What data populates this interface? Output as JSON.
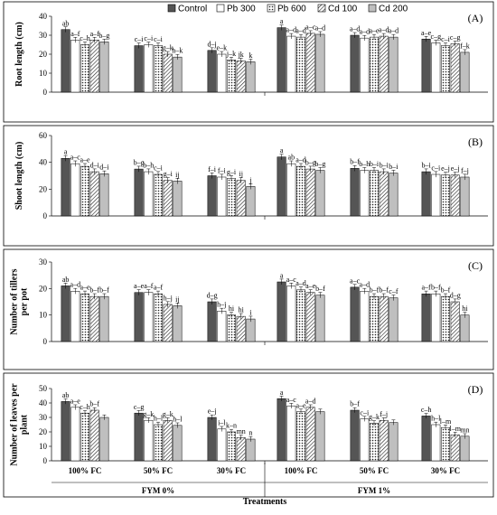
{
  "chart_data": {
    "type": "bar",
    "legend": [
      "Control",
      "Pb 300",
      "Pb 600",
      "Cd 100",
      "Cd 200"
    ],
    "legend_position": "top",
    "series_colors": [
      "#555555",
      "#ffffff",
      "pattern-dots",
      "pattern-hatch",
      "#bfbfbf"
    ],
    "groups": [
      "FYM 0%",
      "FYM 1%"
    ],
    "categories": [
      "100% FC",
      "50% FC",
      "30% FC",
      "100% FC",
      "50% FC",
      "30% FC"
    ],
    "xlabel": "Treatments",
    "panels": [
      {
        "tag": "(A)",
        "ylabel": "Root length (cm)",
        "ylim": [
          0,
          40
        ],
        "yticks": [
          0,
          10,
          20,
          30,
          40
        ],
        "values": [
          [
            33,
            27.5,
            25,
            27.5,
            26.5
          ],
          [
            24.5,
            25,
            24.5,
            20,
            18.5
          ],
          [
            22,
            20,
            17,
            16.5,
            16
          ],
          [
            34,
            29.5,
            29,
            31,
            30.5
          ],
          [
            30,
            28.5,
            29,
            29.5,
            29
          ],
          [
            28,
            26,
            24.5,
            25.5,
            21
          ]
        ],
        "labels": [
          [
            "ab",
            "a–f",
            "c–h",
            "a–f",
            "b–g"
          ],
          [
            "c–i",
            "c–i",
            "c–i",
            "g–k",
            "h–k"
          ],
          [
            "d–j",
            "e–k",
            "j–k",
            "jk",
            "k"
          ],
          [
            "a",
            "a–d",
            "a–d",
            "a–c",
            "a–d"
          ],
          [
            "a–d",
            "a–d",
            "a–e",
            "a–d",
            "a–d"
          ],
          [
            "a–e",
            "c–g",
            "c–i",
            "c–g",
            "f–k"
          ]
        ]
      },
      {
        "tag": "(B)",
        "ylabel": "Shoot length (cm)",
        "ylim": [
          0,
          60
        ],
        "yticks": [
          0,
          20,
          40,
          60
        ],
        "values": [
          [
            43,
            39,
            37,
            33,
            31.5
          ],
          [
            35,
            33,
            31,
            26.5,
            26
          ],
          [
            30,
            29,
            28,
            26.5,
            22
          ],
          [
            44,
            39,
            37,
            35,
            34
          ],
          [
            35.5,
            34,
            34,
            33,
            32
          ],
          [
            33,
            31,
            30.5,
            30.5,
            29
          ]
        ],
        "labels": [
          [
            "a",
            "a–c",
            "a–e",
            "d–i",
            "d–i"
          ],
          [
            "b–g",
            "b–h",
            "c–i",
            "g–i",
            "ij"
          ],
          [
            "f–i",
            "f–i",
            "g–i",
            "ij",
            "j"
          ],
          [
            "a",
            "ab",
            "a–d",
            "b–g",
            "b–g"
          ],
          [
            "b–f",
            "b–h",
            "b–i",
            "b–i",
            "b–i"
          ],
          [
            "b–i",
            "c–i",
            "e–j",
            "e–j",
            "f–j"
          ]
        ]
      },
      {
        "tag": "(C)",
        "ylabel": "Number of tillers per pot",
        "ylim": [
          0,
          30
        ],
        "yticks": [
          0,
          10,
          20,
          30
        ],
        "values": [
          [
            21,
            19,
            18,
            17,
            17
          ],
          [
            18.5,
            18.5,
            18,
            14,
            13.5
          ],
          [
            15,
            11.5,
            10,
            9.5,
            8.5
          ],
          [
            22.5,
            21,
            19.5,
            18.5,
            17.5
          ],
          [
            20.5,
            19,
            17,
            17,
            16.5
          ],
          [
            18,
            18,
            17,
            15,
            10
          ]
        ],
        "labels": [
          [
            "ab",
            "a–d",
            "a–e",
            "b–f",
            "b–f"
          ],
          [
            "a–e",
            "a–f",
            "a–f",
            "h–j",
            "ij"
          ],
          [
            "d–g",
            "h–j",
            "hi",
            "hi",
            "i"
          ],
          [
            "a",
            "a–c",
            "a–d",
            "a–e",
            "b–f"
          ],
          [
            "a–c",
            "a–d",
            "b–f",
            "b–f",
            "c–f"
          ],
          [
            "a–f",
            "b–f",
            "b–f",
            "d–g",
            "hi"
          ]
        ]
      },
      {
        "tag": "(D)",
        "ylabel": "Number of leaves per plant",
        "ylim": [
          0,
          50
        ],
        "yticks": [
          0,
          10,
          20,
          30,
          40,
          50
        ],
        "values": [
          [
            41,
            37,
            33,
            35,
            30
          ],
          [
            33,
            28,
            25,
            28,
            24.5
          ],
          [
            30,
            22,
            20,
            16,
            15
          ],
          [
            43,
            38,
            34,
            37,
            34
          ],
          [
            35,
            29,
            26,
            28,
            26.5
          ],
          [
            31,
            25,
            23,
            18,
            17
          ]
        ],
        "labels": [
          [
            "ab",
            "a–e",
            "c–h",
            "b–f",
            ""
          ],
          [
            "c–g",
            "g–k",
            "h–l",
            "g–k",
            "h–l"
          ],
          [
            "e–j",
            "i–l",
            "k–n",
            "mn",
            "n"
          ],
          [
            "a",
            "a–c",
            "a–e",
            "a–d",
            ""
          ],
          [
            "b–f",
            "c–i",
            "g–k",
            "f–j",
            ""
          ],
          [
            "c–h",
            "h–l",
            "l–m",
            "l–m",
            "mn"
          ]
        ]
      }
    ]
  }
}
